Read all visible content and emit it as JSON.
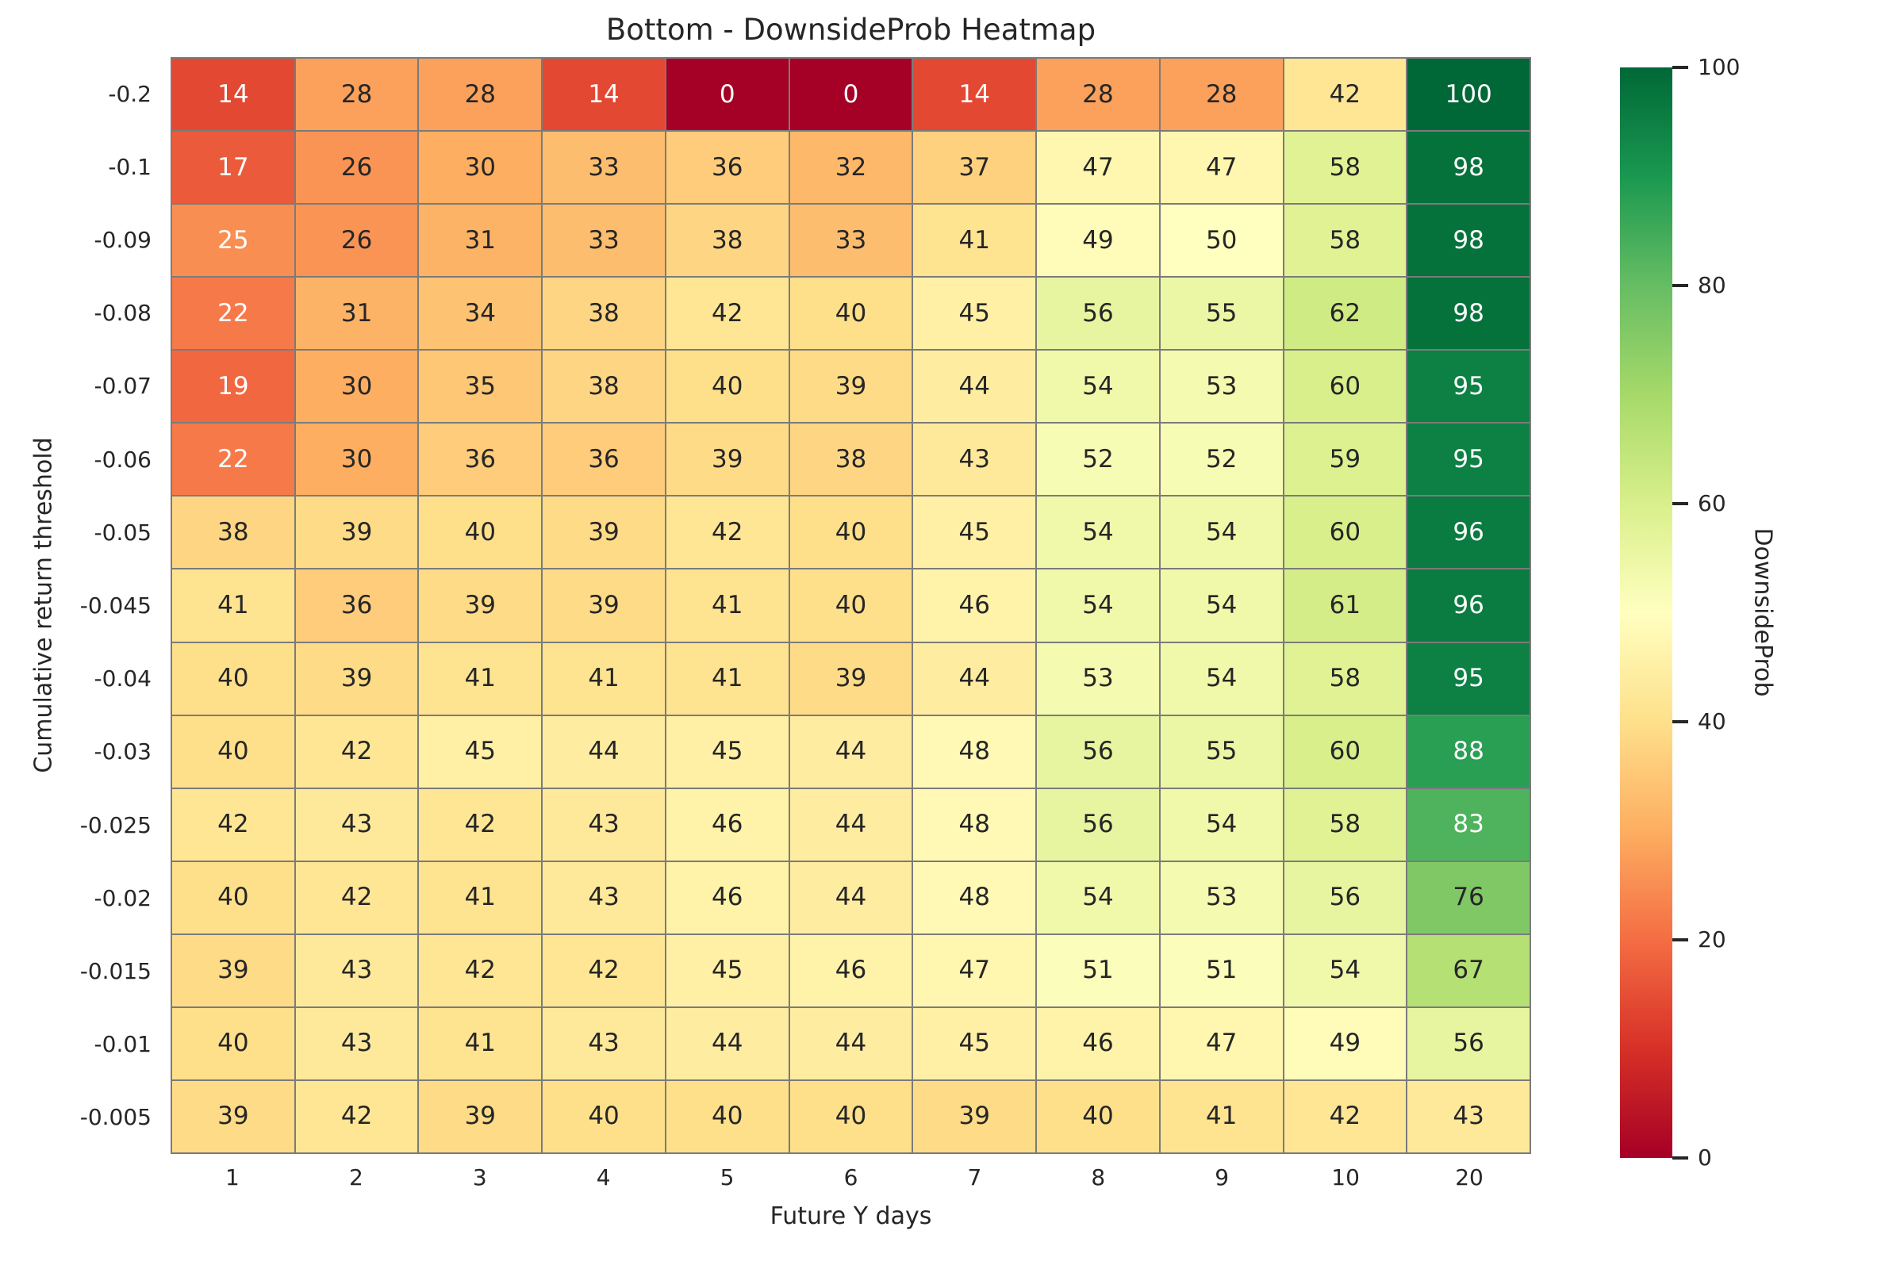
{
  "title": "Bottom - DownsideProb Heatmap",
  "axes": {
    "xlabel": "Future Y days",
    "ylabel": "Cumulative return threshold"
  },
  "colorbar": {
    "label": "DownsideProb",
    "tick_values": [
      0,
      20,
      40,
      60,
      80,
      100
    ],
    "min": 0,
    "max": 100
  },
  "chart_data": {
    "type": "heatmap",
    "title": "Bottom - DownsideProb Heatmap",
    "xlabel": "Future Y days",
    "ylabel": "Cumulative return threshold",
    "x_categories": [
      "1",
      "2",
      "3",
      "4",
      "5",
      "6",
      "7",
      "8",
      "9",
      "10",
      "20"
    ],
    "y_categories": [
      "-0.2",
      "-0.1",
      "-0.09",
      "-0.08",
      "-0.07",
      "-0.06",
      "-0.05",
      "-0.045",
      "-0.04",
      "-0.03",
      "-0.025",
      "-0.02",
      "-0.015",
      "-0.01",
      "-0.005"
    ],
    "values": [
      [
        14,
        28,
        28,
        14,
        0,
        0,
        14,
        28,
        28,
        42,
        100
      ],
      [
        17,
        26,
        30,
        33,
        36,
        32,
        37,
        47,
        47,
        58,
        98
      ],
      [
        25,
        26,
        31,
        33,
        38,
        33,
        41,
        49,
        50,
        58,
        98
      ],
      [
        22,
        31,
        34,
        38,
        42,
        40,
        45,
        56,
        55,
        62,
        98
      ],
      [
        19,
        30,
        35,
        38,
        40,
        39,
        44,
        54,
        53,
        60,
        95
      ],
      [
        22,
        30,
        36,
        36,
        39,
        38,
        43,
        52,
        52,
        59,
        95
      ],
      [
        38,
        39,
        40,
        39,
        42,
        40,
        45,
        54,
        54,
        60,
        96
      ],
      [
        41,
        36,
        39,
        39,
        41,
        40,
        46,
        54,
        54,
        61,
        96
      ],
      [
        40,
        39,
        41,
        41,
        41,
        39,
        44,
        53,
        54,
        58,
        95
      ],
      [
        40,
        42,
        45,
        44,
        45,
        44,
        48,
        56,
        55,
        60,
        88
      ],
      [
        42,
        43,
        42,
        43,
        46,
        44,
        48,
        56,
        54,
        58,
        83
      ],
      [
        40,
        42,
        41,
        43,
        46,
        44,
        48,
        54,
        53,
        56,
        76
      ],
      [
        39,
        43,
        42,
        42,
        45,
        46,
        47,
        51,
        51,
        54,
        67
      ],
      [
        40,
        43,
        41,
        43,
        44,
        44,
        45,
        46,
        47,
        49,
        56
      ],
      [
        39,
        42,
        39,
        40,
        40,
        40,
        39,
        40,
        41,
        42,
        43
      ]
    ],
    "vmin": 0,
    "vmax": 100,
    "colormap": "RdYlGn",
    "colormap_stops": [
      {
        "t": 0.0,
        "color": "#a50026"
      },
      {
        "t": 0.1,
        "color": "#d73027"
      },
      {
        "t": 0.2,
        "color": "#f46d43"
      },
      {
        "t": 0.3,
        "color": "#fdae61"
      },
      {
        "t": 0.4,
        "color": "#fee08b"
      },
      {
        "t": 0.5,
        "color": "#ffffbf"
      },
      {
        "t": 0.6,
        "color": "#d9ef8b"
      },
      {
        "t": 0.7,
        "color": "#a6d96a"
      },
      {
        "t": 0.8,
        "color": "#66bd63"
      },
      {
        "t": 0.9,
        "color": "#1a9850"
      },
      {
        "t": 1.0,
        "color": "#006837"
      }
    ],
    "grid_line_color": "#7b7b7b",
    "annotation_dark_text_color": "#262626",
    "annotation_light_text_color": "#ffffff",
    "legend_position": "right-colorbar"
  }
}
